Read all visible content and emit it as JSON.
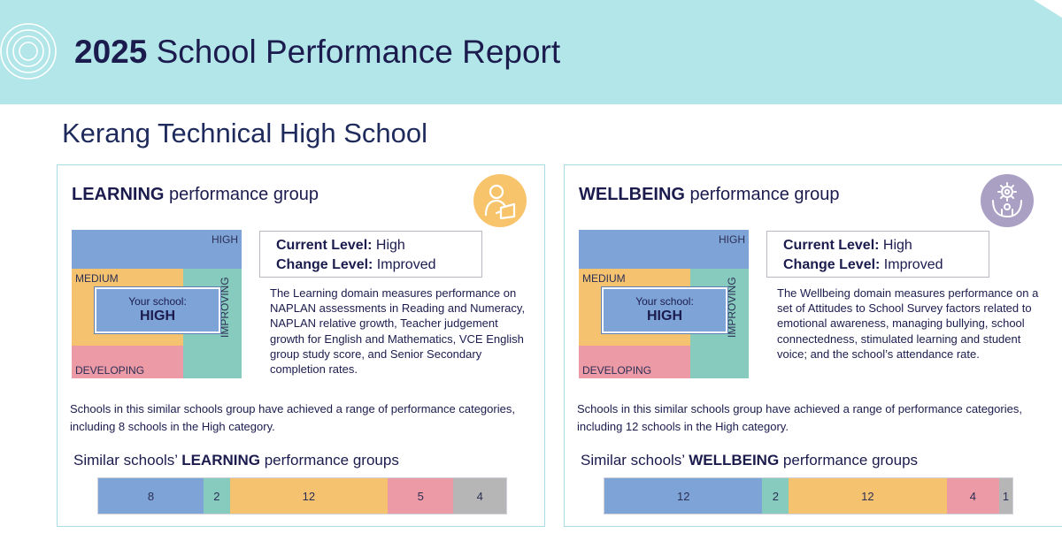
{
  "header": {
    "year": "2025",
    "title": "School Performance Report"
  },
  "school_name": "Kerang Technical High School",
  "colors": {
    "banner": "#b2e6e9",
    "high": "#7ea3d6",
    "improving": "#86cbbd",
    "medium": "#f5c370",
    "developing": "#ec9aa5",
    "other": "#b6b6b6"
  },
  "learning": {
    "title_bold": "LEARNING",
    "title_rest": " performance group",
    "icon": "student-reading-icon",
    "matrix": {
      "high": "HIGH",
      "medium": "MEDIUM",
      "developing": "DEVELOPING",
      "improving": "IMPROVING",
      "your_school_label": "Your school:",
      "your_school_value": "HIGH"
    },
    "current_level_label": "Current Level:",
    "current_level_value": " High",
    "change_level_label": "Change Level:",
    "change_level_value": " Improved",
    "description": "The Learning domain measures performance on NAPLAN assessments in Reading and Numeracy, NAPLAN relative growth, Teacher judgement growth for English and Mathematics, VCE English group study score, and Senior Secondary completion rates.",
    "similar_text": "Schools in this similar schools group have achieved a range of performance categories, including 8 schools in the High category.",
    "bar_title_prefix": "Similar schools’ ",
    "bar_title_bold": "LEARNING",
    "bar_title_suffix": " performance groups",
    "segments": [
      {
        "label": "8",
        "value": 8,
        "category": "high"
      },
      {
        "label": "2",
        "value": 2,
        "category": "improving"
      },
      {
        "label": "12",
        "value": 12,
        "category": "medium"
      },
      {
        "label": "5",
        "value": 5,
        "category": "developing"
      },
      {
        "label": "4",
        "value": 4,
        "category": "other"
      }
    ]
  },
  "wellbeing": {
    "title_bold": "WELLBEING",
    "title_rest": " performance group",
    "icon": "gear-hands-icon",
    "matrix": {
      "high": "HIGH",
      "medium": "MEDIUM",
      "developing": "DEVELOPING",
      "improving": "IMPROVING",
      "your_school_label": "Your school:",
      "your_school_value": "HIGH"
    },
    "current_level_label": "Current Level:",
    "current_level_value": " High",
    "change_level_label": "Change Level:",
    "change_level_value": " Improved",
    "description": "The Wellbeing domain measures performance on a set of Attitudes to School Survey factors related to emotional awareness, managing bullying, school connectedness, stimulated learning and student voice; and the school’s attendance rate.",
    "similar_text": "Schools in this similar schools group have achieved a range of performance categories, including 12 schools in the High category.",
    "bar_title_prefix": "Similar schools’ ",
    "bar_title_bold": "WELLBEING",
    "bar_title_suffix": " performance groups",
    "segments": [
      {
        "label": "12",
        "value": 12,
        "category": "high"
      },
      {
        "label": "2",
        "value": 2,
        "category": "improving"
      },
      {
        "label": "12",
        "value": 12,
        "category": "medium"
      },
      {
        "label": "4",
        "value": 4,
        "category": "developing"
      },
      {
        "label": "1",
        "value": 1,
        "category": "other"
      }
    ]
  }
}
